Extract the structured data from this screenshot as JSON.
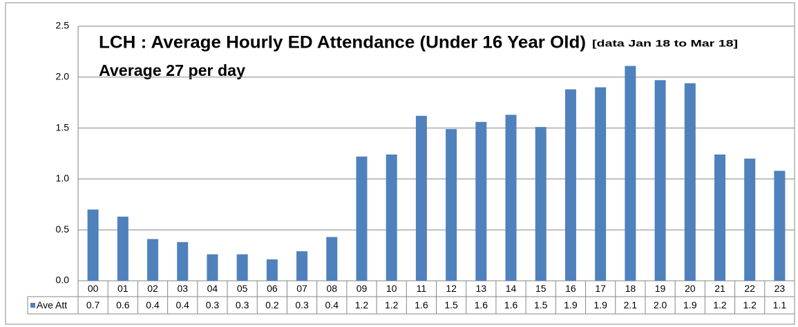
{
  "chart_data": {
    "type": "bar",
    "title": "LCH : Average Hourly ED Attendance (Under 16 Year Old)",
    "title_note": "[data Jan 18 to Mar 18]",
    "subtitle": "Average 27 per day",
    "categories": [
      "00",
      "01",
      "02",
      "03",
      "04",
      "05",
      "06",
      "07",
      "08",
      "09",
      "10",
      "11",
      "12",
      "13",
      "14",
      "15",
      "16",
      "17",
      "18",
      "19",
      "20",
      "21",
      "22",
      "23"
    ],
    "series": [
      {
        "name": "Ave Att",
        "color": "#4f81bd",
        "values": [
          0.7,
          0.63,
          0.41,
          0.38,
          0.26,
          0.26,
          0.21,
          0.29,
          0.43,
          1.22,
          1.24,
          1.62,
          1.49,
          1.56,
          1.63,
          1.51,
          1.88,
          1.9,
          2.11,
          1.97,
          1.94,
          1.24,
          1.2,
          1.08
        ],
        "value_labels": [
          "0.7",
          "0.6",
          "0.4",
          "0.4",
          "0.3",
          "0.3",
          "0.2",
          "0.3",
          "0.4",
          "1.2",
          "1.2",
          "1.6",
          "1.5",
          "1.6",
          "1.6",
          "1.5",
          "1.9",
          "1.9",
          "2.1",
          "2.0",
          "1.9",
          "1.2",
          "1.2",
          "1.1"
        ]
      }
    ],
    "ylim": [
      0,
      2.5
    ],
    "yticks": [
      {
        "value": 0,
        "label": "0.0"
      },
      0.5,
      {
        "value": 1,
        "label": "1.0"
      },
      1.5,
      {
        "value": 2,
        "label": "2.0"
      },
      2.5
    ],
    "grid": true
  }
}
